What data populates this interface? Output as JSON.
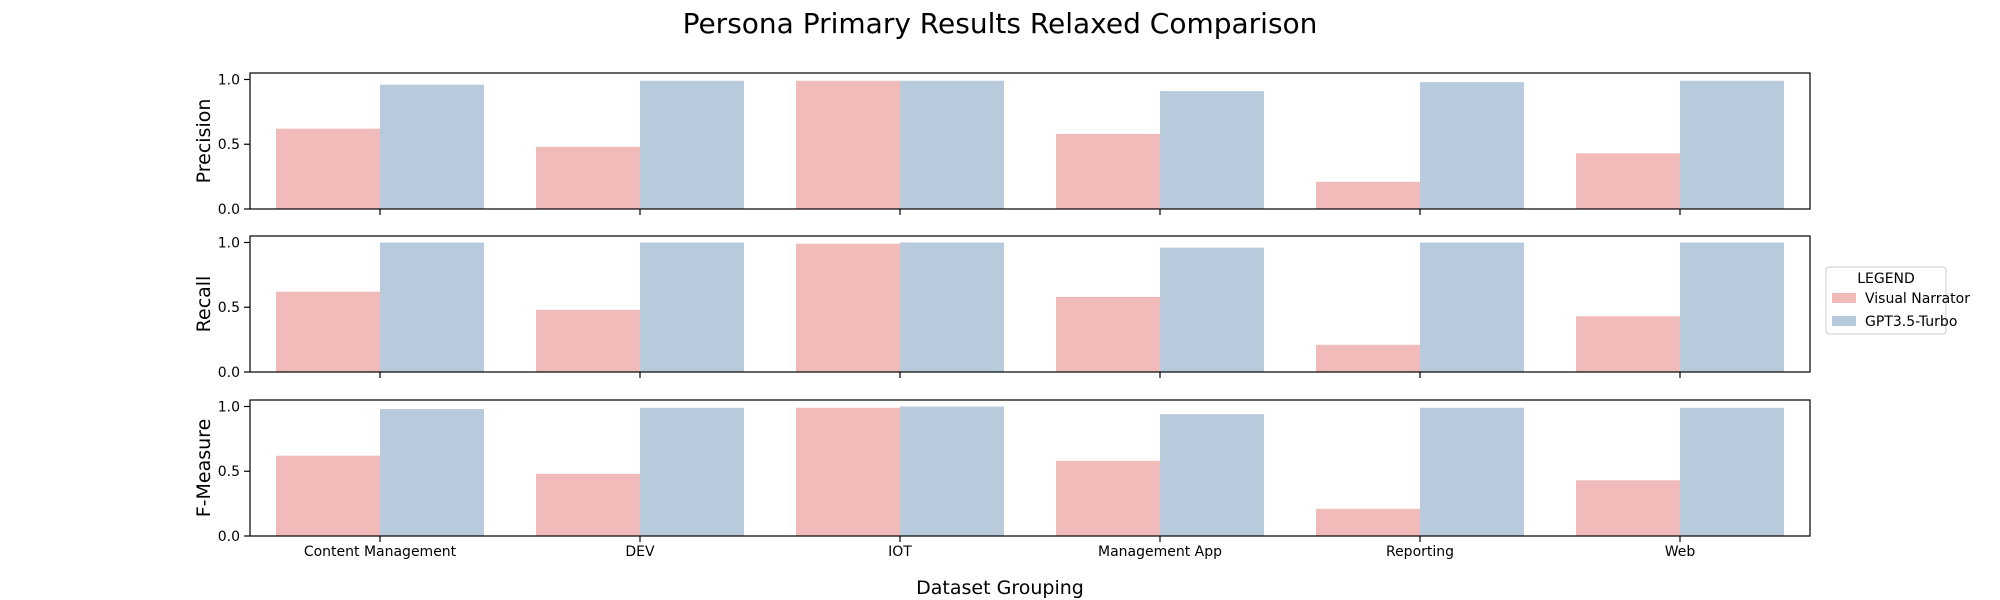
{
  "chart_data": {
    "type": "bar",
    "title": "Persona Primary Results Relaxed Comparison",
    "xlabel": "Dataset Grouping",
    "categories": [
      "Content Management",
      "DEV",
      "IOT",
      "Management App",
      "Reporting",
      "Web"
    ],
    "ylim": [
      0,
      1.05
    ],
    "yticks": [
      0.0,
      0.5,
      1.0
    ],
    "ytick_labels": [
      "0.0",
      "0.5",
      "1.0"
    ],
    "grid": false,
    "legend": {
      "title": "LEGEND",
      "placement": "center-right",
      "entries": [
        "Visual Narrator",
        "GPT3.5-Turbo"
      ]
    },
    "colors": {
      "Visual Narrator": "#f0bbb9",
      "GPT3.5-Turbo": "#b8cbdd"
    },
    "panels": [
      {
        "ylabel": "Precision",
        "series": [
          {
            "name": "Visual Narrator",
            "values": [
              0.62,
              0.48,
              0.99,
              0.58,
              0.21,
              0.43
            ]
          },
          {
            "name": "GPT3.5-Turbo",
            "values": [
              0.96,
              0.99,
              0.99,
              0.91,
              0.98,
              0.99
            ]
          }
        ]
      },
      {
        "ylabel": "Recall",
        "series": [
          {
            "name": "Visual Narrator",
            "values": [
              0.62,
              0.48,
              0.99,
              0.58,
              0.21,
              0.43
            ]
          },
          {
            "name": "GPT3.5-Turbo",
            "values": [
              1.0,
              1.0,
              1.0,
              0.96,
              1.0,
              1.0
            ]
          }
        ]
      },
      {
        "ylabel": "F-Measure",
        "series": [
          {
            "name": "Visual Narrator",
            "values": [
              0.62,
              0.48,
              0.99,
              0.58,
              0.21,
              0.43
            ]
          },
          {
            "name": "GPT3.5-Turbo",
            "values": [
              0.98,
              0.99,
              1.0,
              0.94,
              0.99,
              0.99
            ]
          }
        ]
      }
    ]
  }
}
